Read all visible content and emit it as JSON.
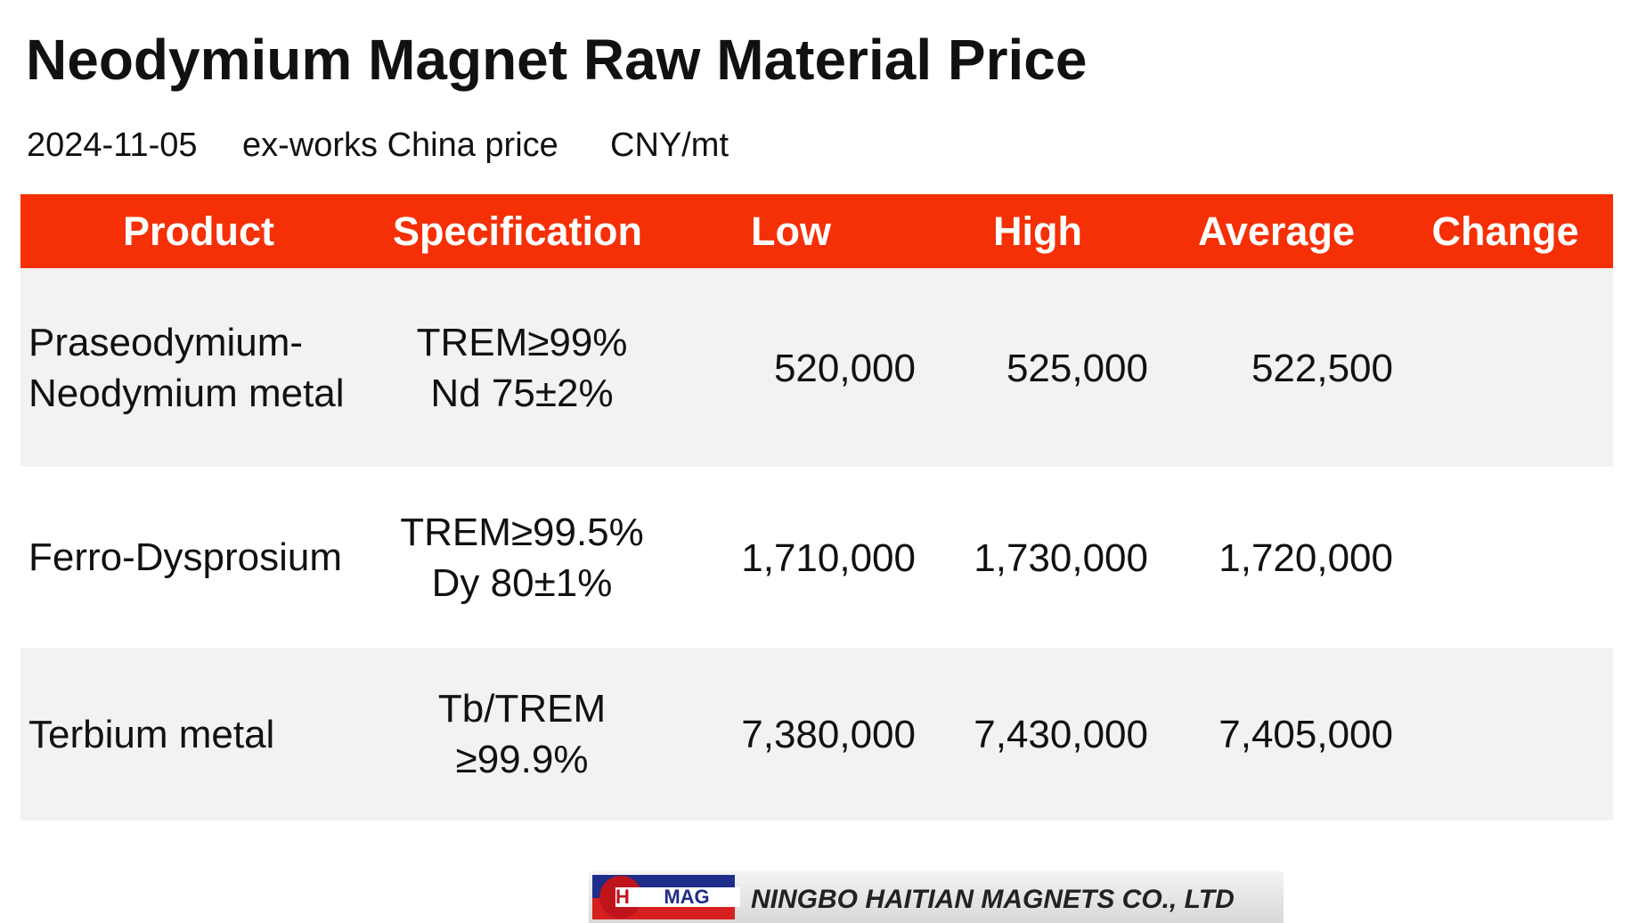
{
  "header": {
    "title": "Neodymium Magnet Raw Material Price",
    "subtitle": [
      "2024-11-05",
      "ex-works China price",
      "CNY/mt"
    ]
  },
  "table": {
    "columns": [
      "Product",
      "Specification",
      "Low",
      "High",
      "Average",
      "Change"
    ],
    "rows": [
      {
        "product": [
          "Praseodymium-",
          "Neodymium metal"
        ],
        "specification": [
          "TREM≥99%",
          "Nd 75±2%"
        ],
        "low": "520,000",
        "high": "525,000",
        "average": "522,500"
      },
      {
        "product": [
          "Ferro-Dysprosium"
        ],
        "specification": [
          "TREM≥99.5%",
          "Dy 80±1%"
        ],
        "low": "1,710,000",
        "high": "1,730,000",
        "average": "1,720,000"
      },
      {
        "product": [
          "Terbium metal"
        ],
        "specification": [
          "Tb/TREM",
          "≥99.9%"
        ],
        "low": "7,380,000",
        "high": "7,430,000",
        "average": "7,405,000"
      }
    ]
  },
  "logo": {
    "letters": [
      "H",
      "MAG"
    ],
    "text": "NINGBO HAITIAN MAGNETS CO., LTD"
  }
}
